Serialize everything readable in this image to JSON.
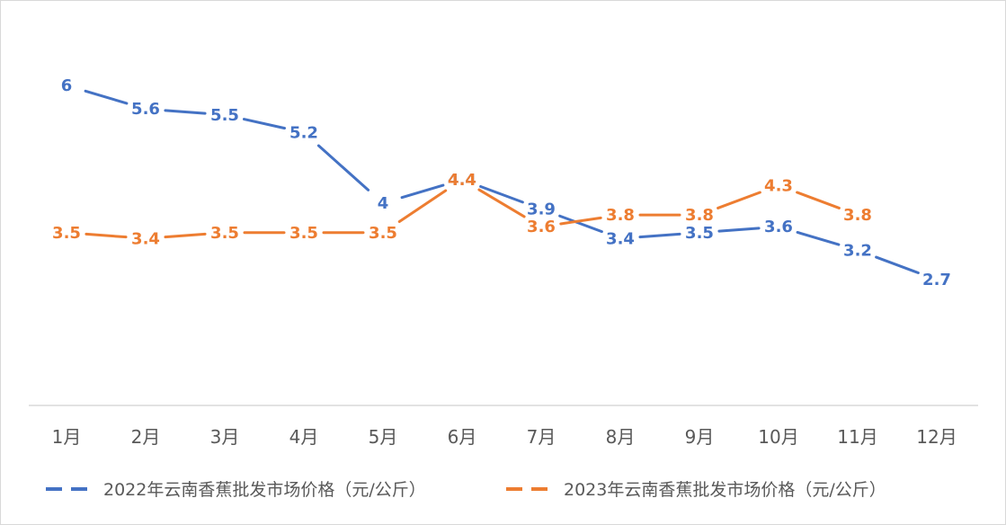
{
  "chart_data": {
    "type": "line",
    "categories": [
      "1月",
      "2月",
      "3月",
      "4月",
      "5月",
      "6月",
      "7月",
      "8月",
      "9月",
      "10月",
      "11月",
      "12月"
    ],
    "series": [
      {
        "name": "2022年云南香蕉批发市场价格（元/公斤）",
        "color": "#4472C4",
        "values": [
          6,
          5.6,
          5.5,
          5.2,
          4,
          4.4,
          3.9,
          3.4,
          3.5,
          3.6,
          3.2,
          2.7
        ],
        "labels": [
          "6",
          "5.6",
          "5.5",
          "5.2",
          "4",
          "4.4",
          "3.9",
          "3.4",
          "3.5",
          "3.6",
          "3.2",
          "2.7"
        ]
      },
      {
        "name": "2023年云南香蕉批发市场价格（元/公斤）",
        "color": "#ED7D31",
        "values": [
          3.5,
          3.4,
          3.5,
          3.5,
          3.5,
          4.4,
          3.6,
          3.8,
          3.8,
          4.3,
          3.8,
          null
        ],
        "labels": [
          "3.5",
          "3.4",
          "3.5",
          "3.5",
          "3.5",
          "4.4",
          "3.6",
          "3.8",
          "3.8",
          "4.3",
          "3.8",
          ""
        ]
      }
    ],
    "legend_position": "bottom",
    "grid": false,
    "axis_color": "#d9d9d9"
  }
}
